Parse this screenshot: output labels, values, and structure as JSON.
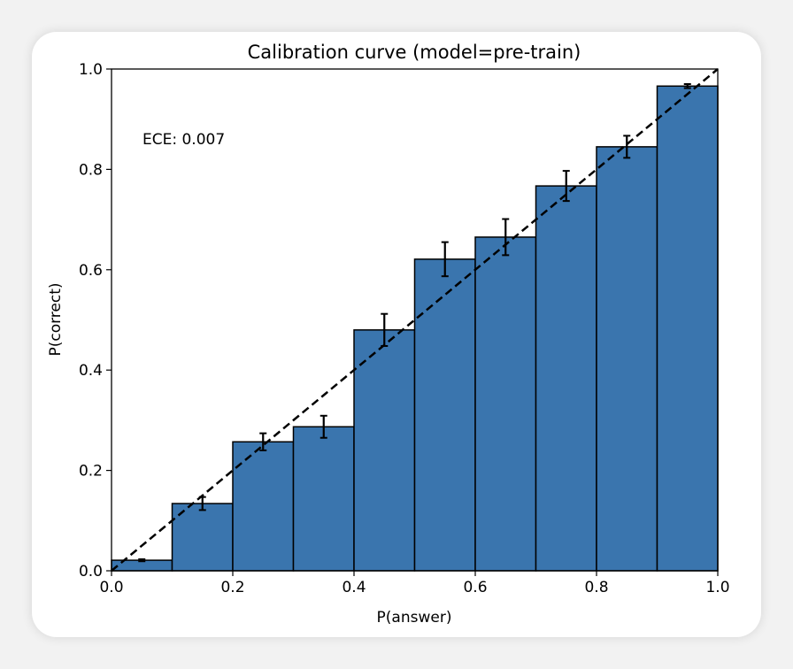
{
  "chart_data": {
    "type": "bar",
    "title": "Calibration curve (model=pre-train)",
    "xlabel": "P(answer)",
    "ylabel": "P(correct)",
    "xlim": [
      0,
      1
    ],
    "ylim": [
      0,
      1
    ],
    "xticks": [
      "0.0",
      "0.2",
      "0.4",
      "0.6",
      "0.8",
      "1.0"
    ],
    "yticks": [
      "0.0",
      "0.2",
      "0.4",
      "0.6",
      "0.8",
      "1.0"
    ],
    "annotation": "ECE: 0.007",
    "bin_edges": [
      0,
      0.1,
      0.2,
      0.3,
      0.4,
      0.5,
      0.6,
      0.7,
      0.8,
      0.9,
      1.0
    ],
    "values": [
      0.021,
      0.134,
      0.257,
      0.287,
      0.48,
      0.621,
      0.665,
      0.767,
      0.845,
      0.966
    ],
    "errors": [
      0.002,
      0.013,
      0.017,
      0.022,
      0.032,
      0.034,
      0.036,
      0.03,
      0.022,
      0.004
    ],
    "reference_line": "y = x (dashed)",
    "grid": false,
    "bar_color": "#3a75ae"
  }
}
